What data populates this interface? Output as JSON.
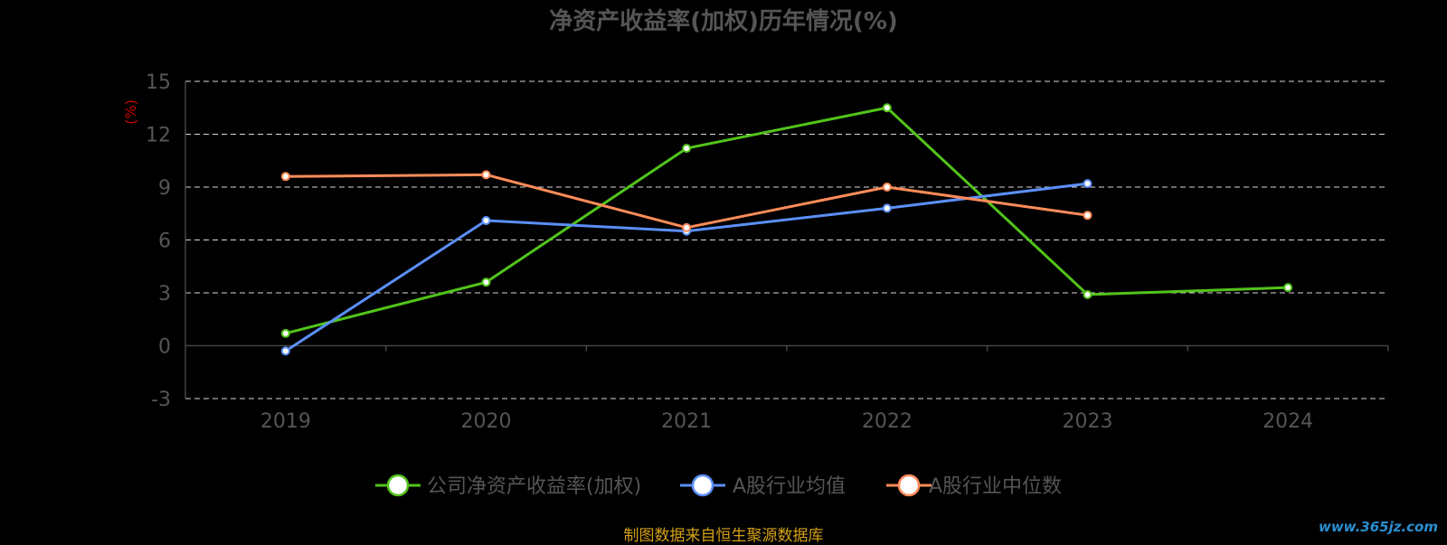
{
  "chart_data": {
    "type": "line",
    "title": "净资产收益率(加权)历年情况(%)",
    "ylabel": "(%)",
    "xlabel": "",
    "categories": [
      "2019",
      "2020",
      "2021",
      "2022",
      "2023",
      "2024"
    ],
    "ylim": [
      -3,
      15
    ],
    "yticks": [
      -3,
      0,
      3,
      6,
      9,
      12,
      15
    ],
    "grid": true,
    "legend_position": "bottom",
    "series": [
      {
        "name": "公司净资产收益率(加权)",
        "color": "#52c41a",
        "values": [
          0.7,
          3.6,
          11.2,
          13.5,
          2.9,
          3.3
        ]
      },
      {
        "name": "A股行业均值",
        "color": "#5b8ff9",
        "values": [
          -0.3,
          7.1,
          6.5,
          7.8,
          9.2,
          null
        ]
      },
      {
        "name": "A股行业中位数",
        "color": "#ff8c5a",
        "values": [
          9.6,
          9.7,
          6.7,
          9.0,
          7.4,
          null
        ]
      }
    ],
    "colors": {
      "axis_text": "#555555",
      "title": "#555555",
      "ylabel": "#cc0000",
      "grid": "#ffffff"
    }
  },
  "footer": {
    "source": "制图数据来自恒生聚源数据库",
    "watermark": "www.365jz.com"
  }
}
